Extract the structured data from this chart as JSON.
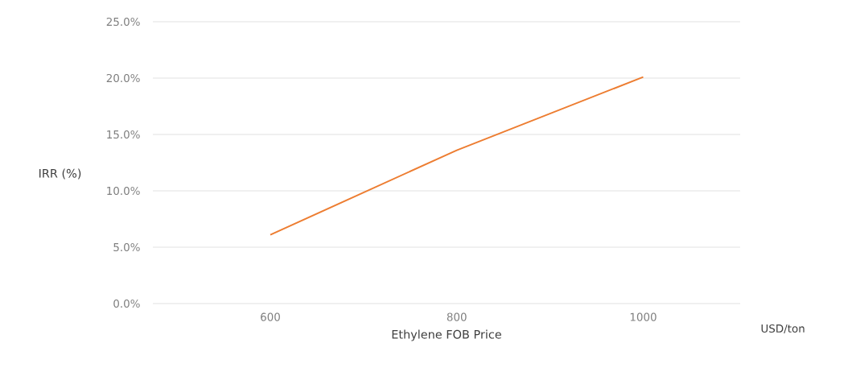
{
  "chart_data": {
    "type": "line",
    "xlabel": "Ethylene FOB Price",
    "ylabel": "IRR (%)",
    "annotations": [
      "USD/ton"
    ],
    "categories": [
      "600",
      "800",
      "1000"
    ],
    "series": [
      {
        "color": "#ed7d31",
        "values": [
          6.1,
          13.6,
          20.1
        ]
      }
    ],
    "ylim": [
      0,
      25
    ],
    "yticks": [
      {
        "value": 0,
        "label": "0.0%"
      },
      {
        "value": 5,
        "label": "5.0%"
      },
      {
        "value": 10,
        "label": "10.0%"
      },
      {
        "value": 15,
        "label": "15.0%"
      },
      {
        "value": 20,
        "label": "20.0%"
      },
      {
        "value": 25,
        "label": "25.0%"
      }
    ],
    "grid": "y",
    "legend": false,
    "marker": "none",
    "line_style": "solid"
  }
}
